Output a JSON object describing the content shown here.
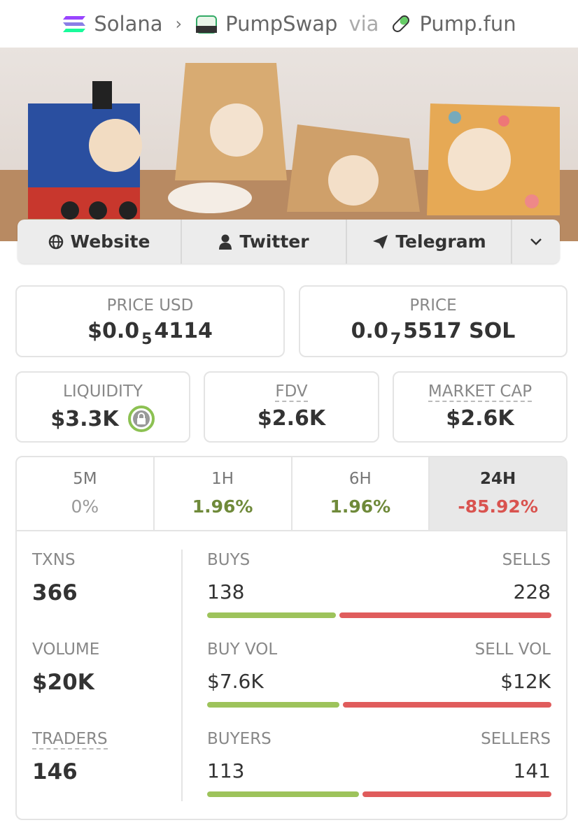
{
  "breadcrumb": {
    "chain": "Solana",
    "dex": "PumpSwap",
    "via": "via",
    "launchpad": "Pump.fun"
  },
  "links": [
    "Website",
    "Twitter",
    "Telegram"
  ],
  "price_usd": {
    "label": "PRICE USD",
    "prefix": "$0.0",
    "zeros": "5",
    "digits": "4114"
  },
  "price": {
    "label": "PRICE",
    "prefix": "0.0",
    "zeros": "7",
    "digits": "5517 SOL"
  },
  "metrics": [
    {
      "label": "LIQUIDITY",
      "value": "$3.3K"
    },
    {
      "label": "FDV",
      "value": "$2.6K"
    },
    {
      "label": "MARKET CAP",
      "value": "$2.6K"
    }
  ],
  "timeframes": [
    {
      "label": "5M",
      "change": "0%"
    },
    {
      "label": "1H",
      "change": "1.96%"
    },
    {
      "label": "6H",
      "change": "1.96%"
    },
    {
      "label": "24H",
      "change": "-85.92%"
    }
  ],
  "stats": [
    {
      "label": "TXNS",
      "total": 366,
      "buy_label": "BUYS",
      "buy": 138,
      "sell_label": "SELLS",
      "sell": 228
    },
    {
      "label": "VOLUME",
      "total": "$20K",
      "buy_label": "BUY VOL",
      "buy": {
        "value": 7.6,
        "label": "$7.6K"
      },
      "sell_label": "SELL VOL",
      "sell": {
        "value": 12,
        "label": "$12K"
      }
    },
    {
      "label": "TRADERS",
      "total": 146,
      "buy_label": "BUYERS",
      "buy": 113,
      "sell_label": "SELLERS",
      "sell": 141
    }
  ]
}
